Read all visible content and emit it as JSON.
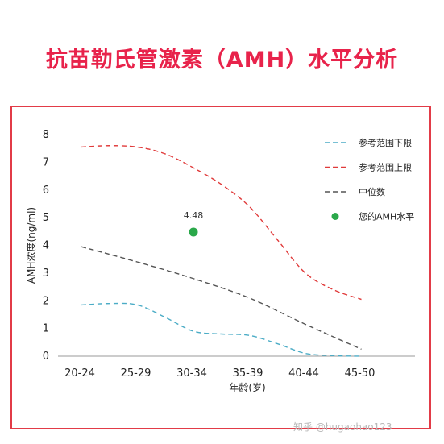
{
  "title": "抗苗勒氏管激素（AMH）水平分析",
  "watermark": "知乎 @hugaohao123",
  "chart_data": {
    "type": "line",
    "xlabel": "年龄(岁)",
    "ylabel": "AMH浓度(ng/ml)",
    "categories": [
      "20-24",
      "25-29",
      "30-34",
      "35-39",
      "40-44",
      "45-50"
    ],
    "ylim": [
      0,
      8
    ],
    "yticks": [
      0,
      1,
      2,
      3,
      4,
      5,
      6,
      7,
      8
    ],
    "grid": false,
    "legend_position": "top-right",
    "series": [
      {
        "name": "参考范围下限",
        "color": "#4bacc6",
        "dash": true,
        "x": [
          0,
          0.5,
          1,
          1.5,
          2,
          2.5,
          3,
          3.5,
          4,
          4.5,
          5
        ],
        "values": [
          1.85,
          1.9,
          1.85,
          1.4,
          0.9,
          0.8,
          0.75,
          0.45,
          0.1,
          0.02,
          0.0
        ]
      },
      {
        "name": "参考范围上限",
        "color": "#e03a3a",
        "dash": true,
        "x": [
          0,
          0.5,
          1,
          1.5,
          2,
          2.5,
          3,
          3.5,
          4,
          4.5,
          5
        ],
        "values": [
          7.55,
          7.6,
          7.55,
          7.3,
          6.8,
          6.2,
          5.4,
          4.2,
          3.0,
          2.4,
          2.05
        ]
      },
      {
        "name": "中位数",
        "color": "#555555",
        "dash": true,
        "x": [
          0,
          1,
          2,
          3,
          4,
          5
        ],
        "values": [
          3.95,
          3.4,
          2.8,
          2.1,
          1.15,
          0.25
        ]
      }
    ],
    "points": [
      {
        "name": "您的AMH水平",
        "color": "#2aa84a",
        "x": 2,
        "value": 4.48,
        "label": "4.48"
      }
    ]
  }
}
